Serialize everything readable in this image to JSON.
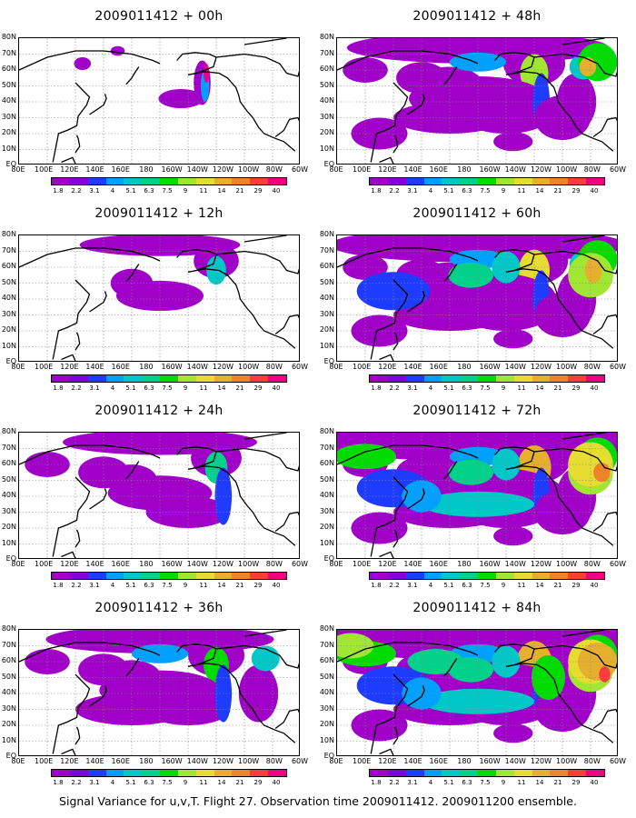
{
  "figure": {
    "caption": "Signal Variance for u,v,T. Flight 27. Observation time 2009011412. 2009011200 ensemble.",
    "longitude_labels": [
      "80E",
      "100E",
      "120E",
      "140E",
      "160E",
      "180",
      "160W",
      "140W",
      "120W",
      "100W",
      "80W",
      "60W"
    ],
    "latitude_labels": [
      "80N",
      "70N",
      "60N",
      "50N",
      "40N",
      "30N",
      "20N",
      "10N",
      "EQ"
    ],
    "colorbar": {
      "labels": [
        "1.8",
        "2.2",
        "3.1",
        "4",
        "5.1",
        "6.3",
        "7.5",
        "9",
        "11",
        "14",
        "21",
        "29",
        "40"
      ],
      "colors": [
        "#a000c8",
        "#8200dc",
        "#1e3cff",
        "#00a0ff",
        "#00c8c8",
        "#00d28c",
        "#00dc00",
        "#a0e632",
        "#e6dc32",
        "#e6af2d",
        "#f08228",
        "#fa3c3c",
        "#f00082"
      ]
    }
  },
  "panels": [
    {
      "title": "2009011412 + 00h",
      "intensity": 0
    },
    {
      "title": "2009011412 + 48h",
      "intensity": 4
    },
    {
      "title": "2009011412 + 12h",
      "intensity": 1
    },
    {
      "title": "2009011412 + 60h",
      "intensity": 5
    },
    {
      "title": "2009011412 + 24h",
      "intensity": 2
    },
    {
      "title": "2009011412 + 72h",
      "intensity": 6
    },
    {
      "title": "2009011412 + 36h",
      "intensity": 3
    },
    {
      "title": "2009011412 + 84h",
      "intensity": 7
    }
  ]
}
